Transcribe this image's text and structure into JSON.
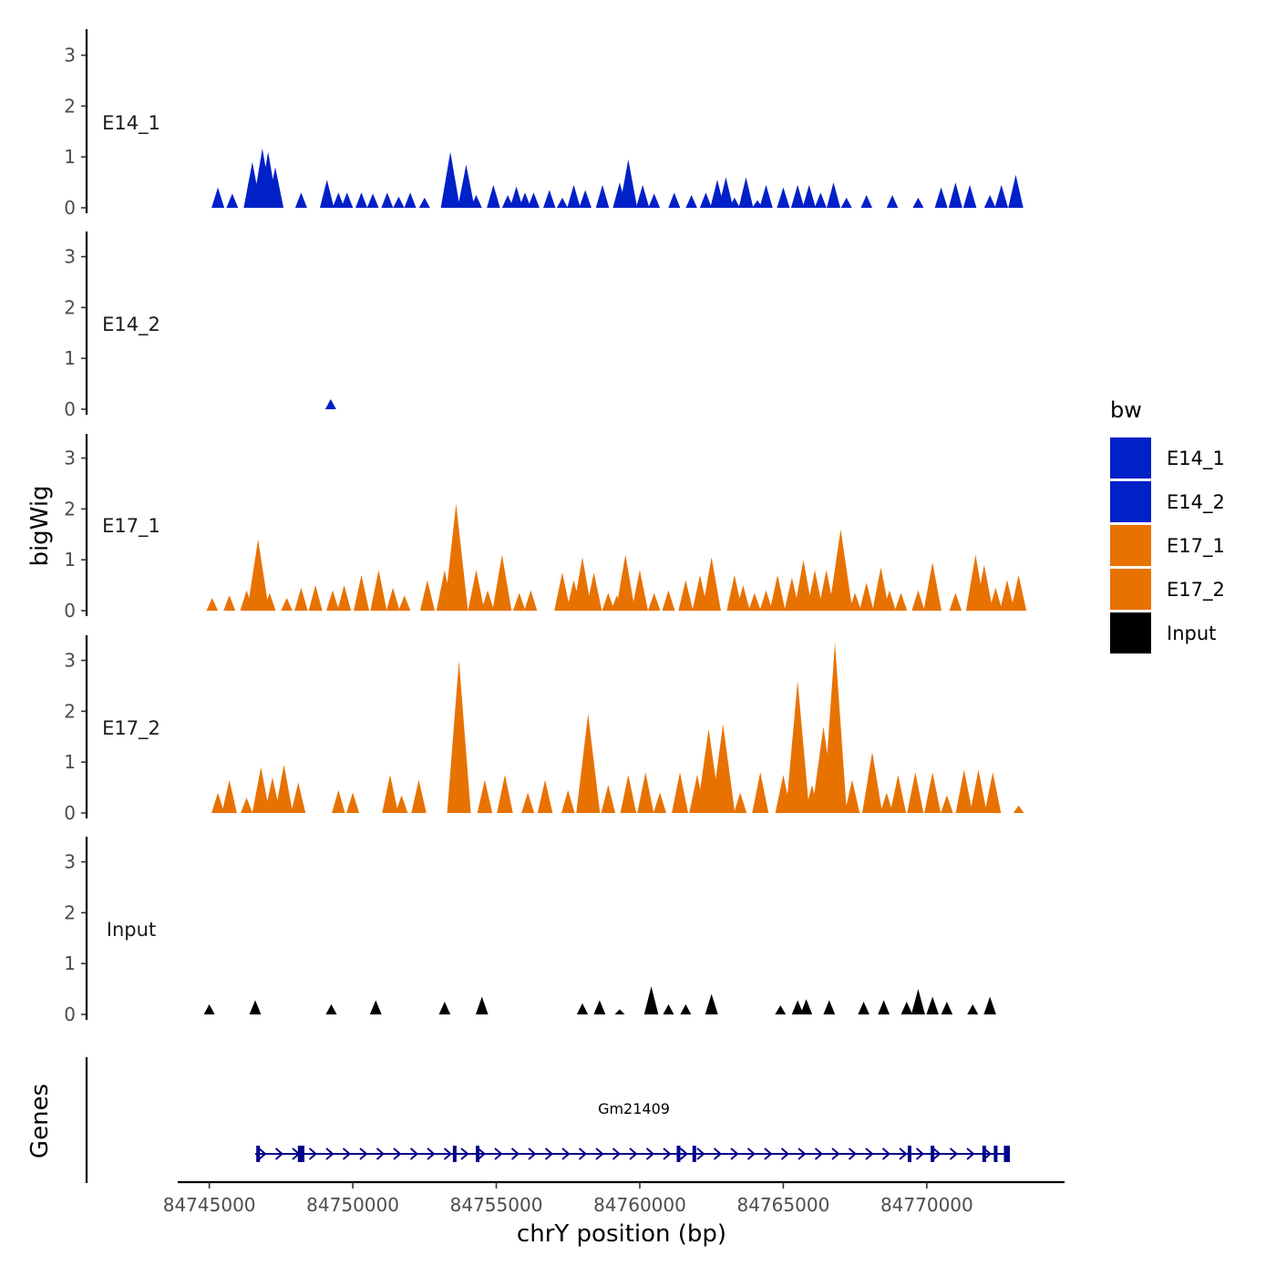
{
  "chart_data": {
    "type": "area",
    "xlabel": "chrY position (bp)",
    "ylabel": "bigWig",
    "genes_axis_label": "Genes",
    "xlim": [
      84743900,
      84774800
    ],
    "ylim": [
      0,
      3.5
    ],
    "x_ticks": [
      84745000,
      84750000,
      84755000,
      84760000,
      84765000,
      84770000
    ],
    "x_tick_labels": [
      "84745000",
      "84750000",
      "84755000",
      "84760000",
      "84765000",
      "84770000"
    ],
    "y_ticks": [
      0,
      1,
      2,
      3
    ],
    "y_tick_labels": [
      "0",
      "1",
      "2",
      "3"
    ],
    "legend": {
      "title": "bw",
      "entries": [
        {
          "label": "E14_1",
          "color": "#0020C8"
        },
        {
          "label": "E14_2",
          "color": "#0020C8"
        },
        {
          "label": "E17_1",
          "color": "#E87200"
        },
        {
          "label": "E17_2",
          "color": "#E87200"
        },
        {
          "label": "Input",
          "color": "#000000"
        }
      ]
    },
    "series": [
      {
        "name": "E14_1",
        "color": "#0020C8",
        "peaks": [
          [
            84745300,
            0.4
          ],
          [
            84745800,
            0.28
          ],
          [
            84746500,
            0.9
          ],
          [
            84746850,
            1.17
          ],
          [
            84747050,
            1.1
          ],
          [
            84747300,
            0.8
          ],
          [
            84748200,
            0.3
          ],
          [
            84749100,
            0.55
          ],
          [
            84749500,
            0.3
          ],
          [
            84749800,
            0.3
          ],
          [
            84750300,
            0.3
          ],
          [
            84750700,
            0.28
          ],
          [
            84751200,
            0.3
          ],
          [
            84751600,
            0.22
          ],
          [
            84752000,
            0.3
          ],
          [
            84752500,
            0.2
          ],
          [
            84753400,
            1.1
          ],
          [
            84753950,
            0.85
          ],
          [
            84754300,
            0.25
          ],
          [
            84754900,
            0.45
          ],
          [
            84755400,
            0.25
          ],
          [
            84755700,
            0.42
          ],
          [
            84756000,
            0.3
          ],
          [
            84756300,
            0.3
          ],
          [
            84756850,
            0.35
          ],
          [
            84757300,
            0.2
          ],
          [
            84757700,
            0.45
          ],
          [
            84758100,
            0.35
          ],
          [
            84758700,
            0.45
          ],
          [
            84759300,
            0.5
          ],
          [
            84759600,
            0.95
          ],
          [
            84760100,
            0.45
          ],
          [
            84760500,
            0.28
          ],
          [
            84761200,
            0.3
          ],
          [
            84761800,
            0.25
          ],
          [
            84762300,
            0.3
          ],
          [
            84762700,
            0.55
          ],
          [
            84763000,
            0.6
          ],
          [
            84763300,
            0.2
          ],
          [
            84763700,
            0.6
          ],
          [
            84764100,
            0.15
          ],
          [
            84764400,
            0.45
          ],
          [
            84765000,
            0.4
          ],
          [
            84765500,
            0.45
          ],
          [
            84765900,
            0.45
          ],
          [
            84766300,
            0.3
          ],
          [
            84766750,
            0.5
          ],
          [
            84767200,
            0.2
          ],
          [
            84767900,
            0.25
          ],
          [
            84768800,
            0.25
          ],
          [
            84769700,
            0.2
          ],
          [
            84770500,
            0.4
          ],
          [
            84771000,
            0.5
          ],
          [
            84771500,
            0.45
          ],
          [
            84772200,
            0.25
          ],
          [
            84772600,
            0.45
          ],
          [
            84773100,
            0.65
          ]
        ]
      },
      {
        "name": "E14_2",
        "color": "#0020C8",
        "peaks": [
          [
            84749230,
            0.2
          ]
        ]
      },
      {
        "name": "E17_1",
        "color": "#E87200",
        "peaks": [
          [
            84745100,
            0.25
          ],
          [
            84745700,
            0.3
          ],
          [
            84746300,
            0.4
          ],
          [
            84746700,
            1.4
          ],
          [
            84747100,
            0.35
          ],
          [
            84747700,
            0.25
          ],
          [
            84748200,
            0.45
          ],
          [
            84748700,
            0.5
          ],
          [
            84749300,
            0.4
          ],
          [
            84749700,
            0.5
          ],
          [
            84750300,
            0.7
          ],
          [
            84750900,
            0.8
          ],
          [
            84751400,
            0.45
          ],
          [
            84751800,
            0.3
          ],
          [
            84752600,
            0.6
          ],
          [
            84753200,
            0.8
          ],
          [
            84753600,
            2.1
          ],
          [
            84754300,
            0.8
          ],
          [
            84754700,
            0.4
          ],
          [
            84755200,
            1.1
          ],
          [
            84755800,
            0.35
          ],
          [
            84756200,
            0.4
          ],
          [
            84757300,
            0.75
          ],
          [
            84757700,
            0.6
          ],
          [
            84758000,
            1.05
          ],
          [
            84758400,
            0.75
          ],
          [
            84758900,
            0.35
          ],
          [
            84759200,
            0.3
          ],
          [
            84759500,
            1.1
          ],
          [
            84760000,
            0.8
          ],
          [
            84760500,
            0.35
          ],
          [
            84761000,
            0.4
          ],
          [
            84761600,
            0.6
          ],
          [
            84762100,
            0.7
          ],
          [
            84762500,
            1.05
          ],
          [
            84763300,
            0.7
          ],
          [
            84763600,
            0.5
          ],
          [
            84764000,
            0.35
          ],
          [
            84764400,
            0.4
          ],
          [
            84764800,
            0.7
          ],
          [
            84765300,
            0.65
          ],
          [
            84765700,
            1.0
          ],
          [
            84766100,
            0.8
          ],
          [
            84766500,
            0.8
          ],
          [
            84767000,
            1.6
          ],
          [
            84767500,
            0.35
          ],
          [
            84767900,
            0.55
          ],
          [
            84768400,
            0.85
          ],
          [
            84768700,
            0.4
          ],
          [
            84769100,
            0.35
          ],
          [
            84769700,
            0.4
          ],
          [
            84770200,
            0.95
          ],
          [
            84771000,
            0.35
          ],
          [
            84771700,
            1.1
          ],
          [
            84772000,
            0.9
          ],
          [
            84772400,
            0.45
          ],
          [
            84772800,
            0.6
          ],
          [
            84773200,
            0.7
          ]
        ]
      },
      {
        "name": "E17_2",
        "color": "#E87200",
        "peaks": [
          [
            84745300,
            0.4
          ],
          [
            84745700,
            0.65
          ],
          [
            84746300,
            0.3
          ],
          [
            84746800,
            0.9
          ],
          [
            84747200,
            0.7
          ],
          [
            84747600,
            0.95
          ],
          [
            84748100,
            0.6
          ],
          [
            84749500,
            0.45
          ],
          [
            84750000,
            0.4
          ],
          [
            84751300,
            0.75
          ],
          [
            84751700,
            0.35
          ],
          [
            84752300,
            0.65
          ],
          [
            84753700,
            3.0
          ],
          [
            84754600,
            0.65
          ],
          [
            84755300,
            0.75
          ],
          [
            84756100,
            0.4
          ],
          [
            84756700,
            0.65
          ],
          [
            84757500,
            0.45
          ],
          [
            84758200,
            1.95
          ],
          [
            84758900,
            0.55
          ],
          [
            84759600,
            0.75
          ],
          [
            84760200,
            0.8
          ],
          [
            84760700,
            0.4
          ],
          [
            84761400,
            0.8
          ],
          [
            84762000,
            0.75
          ],
          [
            84762400,
            1.65
          ],
          [
            84762900,
            1.75
          ],
          [
            84763500,
            0.4
          ],
          [
            84764200,
            0.8
          ],
          [
            84765000,
            0.75
          ],
          [
            84765500,
            2.6
          ],
          [
            84766000,
            0.55
          ],
          [
            84766400,
            1.7
          ],
          [
            84766800,
            3.35
          ],
          [
            84767400,
            0.65
          ],
          [
            84768100,
            1.2
          ],
          [
            84768600,
            0.4
          ],
          [
            84769000,
            0.75
          ],
          [
            84769600,
            0.8
          ],
          [
            84770200,
            0.8
          ],
          [
            84770700,
            0.35
          ],
          [
            84771300,
            0.85
          ],
          [
            84771800,
            0.85
          ],
          [
            84772300,
            0.8
          ],
          [
            84773200,
            0.15
          ]
        ]
      },
      {
        "name": "Input",
        "color": "#000000",
        "peaks": [
          [
            84745000,
            0.2
          ],
          [
            84746600,
            0.28
          ],
          [
            84749250,
            0.2
          ],
          [
            84750800,
            0.28
          ],
          [
            84753200,
            0.25
          ],
          [
            84754500,
            0.35
          ],
          [
            84758000,
            0.22
          ],
          [
            84758600,
            0.28
          ],
          [
            84759300,
            0.1
          ],
          [
            84760400,
            0.55
          ],
          [
            84761000,
            0.2
          ],
          [
            84761600,
            0.2
          ],
          [
            84762500,
            0.4
          ],
          [
            84764900,
            0.18
          ],
          [
            84765500,
            0.28
          ],
          [
            84765800,
            0.3
          ],
          [
            84766600,
            0.28
          ],
          [
            84767800,
            0.25
          ],
          [
            84768500,
            0.28
          ],
          [
            84769300,
            0.25
          ],
          [
            84769700,
            0.5
          ],
          [
            84770200,
            0.35
          ],
          [
            84770700,
            0.25
          ],
          [
            84771600,
            0.2
          ],
          [
            84772200,
            0.35
          ]
        ]
      }
    ],
    "genes": [
      {
        "name": "Gm21409",
        "start": 84746600,
        "end": 84772800,
        "strand": "+",
        "exons": [
          84746700,
          84748150,
          84748250,
          84753550,
          84754350,
          84761350,
          84761900,
          84769400,
          84770200,
          84772000,
          84772400,
          84772750
        ]
      }
    ]
  }
}
